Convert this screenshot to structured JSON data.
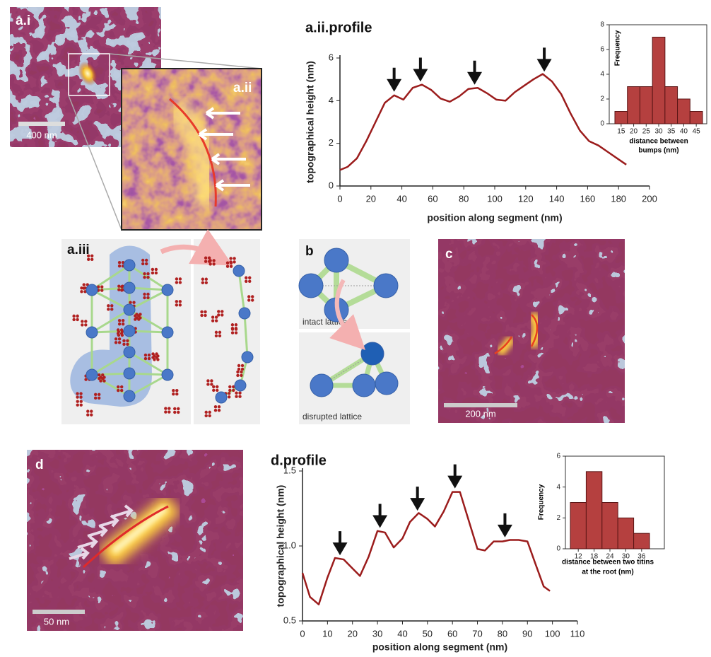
{
  "panels": {
    "a_i": {
      "label": "a.i",
      "scale": "400 nm"
    },
    "a_ii": {
      "label": "a.ii"
    },
    "a_iii": {
      "label": "a.iii"
    },
    "b": {
      "label": "b",
      "top": "intact lattice",
      "bottom": "disrupted lattice"
    },
    "c": {
      "label": "c",
      "scale": "200 nm"
    },
    "d": {
      "label": "d",
      "scale": "50 nm"
    }
  },
  "chart_data": [
    {
      "type": "line",
      "title": "a.ii.profile",
      "xlabel": "position along segment (nm)",
      "ylabel": "topographical height (nm)",
      "x": [
        0,
        5,
        11,
        17,
        23,
        29,
        35,
        41,
        47,
        53,
        59,
        65,
        71,
        77,
        83,
        89,
        95,
        101,
        107,
        113,
        119,
        125,
        131,
        137,
        143,
        149,
        155,
        161,
        167,
        173,
        179,
        185
      ],
      "values": [
        0.75,
        0.9,
        1.3,
        2.1,
        3.0,
        3.9,
        4.25,
        4.05,
        4.6,
        4.75,
        4.5,
        4.1,
        3.95,
        4.2,
        4.55,
        4.6,
        4.35,
        4.05,
        4.0,
        4.4,
        4.7,
        5.0,
        5.25,
        4.9,
        4.3,
        3.4,
        2.6,
        2.1,
        1.9,
        1.6,
        1.3,
        1.0
      ],
      "color": "#9b1c1c",
      "arrows": [
        35,
        52,
        87,
        132
      ],
      "xlim": [
        0,
        200
      ],
      "ylim": [
        0,
        6
      ],
      "xticks": [
        0,
        20,
        40,
        60,
        80,
        100,
        120,
        140,
        160,
        180,
        200
      ],
      "yticks": [
        0,
        2,
        4,
        6
      ]
    },
    {
      "type": "histogram",
      "xlabel": [
        "distance between",
        "bumps (nm)"
      ],
      "ylabel": "Frequency",
      "bins": [
        12.5,
        17.5,
        22.5,
        27.5,
        32.5,
        37.5,
        42.5,
        47.5
      ],
      "values": [
        1,
        3,
        3,
        7,
        3,
        2,
        1
      ],
      "color": "#b5403f",
      "xlim": [
        12.5,
        47.5
      ],
      "ylim": [
        0,
        8
      ],
      "xticks": [
        15,
        20,
        25,
        30,
        35,
        40,
        45
      ],
      "yticks": [
        0,
        2,
        4,
        6,
        8
      ]
    },
    {
      "type": "line",
      "title": "d.profile",
      "xlabel": "position along segment (nm)",
      "ylabel": "topographical height (nm)",
      "x": [
        0,
        3,
        6.5,
        10,
        13,
        16.5,
        20,
        23,
        26.5,
        30,
        33,
        36.5,
        40,
        43,
        46.5,
        50,
        53,
        56.5,
        60,
        63,
        66.5,
        70,
        73,
        76.5,
        80,
        83,
        86.5,
        90,
        93,
        96.5,
        99
      ],
      "values": [
        0.82,
        0.66,
        0.61,
        0.79,
        0.92,
        0.91,
        0.85,
        0.8,
        0.93,
        1.1,
        1.09,
        0.99,
        1.05,
        1.16,
        1.22,
        1.18,
        1.13,
        1.23,
        1.36,
        1.36,
        1.17,
        0.98,
        0.97,
        1.03,
        1.03,
        1.04,
        1.04,
        1.03,
        0.89,
        0.73,
        0.7
      ],
      "color": "#9b1c1c",
      "arrows": [
        15,
        31,
        46,
        61,
        81
      ],
      "xlim": [
        0,
        110
      ],
      "ylim": [
        0.5,
        1.5
      ],
      "xticks": [
        0,
        10,
        20,
        30,
        40,
        50,
        60,
        70,
        80,
        90,
        100,
        110
      ],
      "yticks": [
        0.5,
        {
          "value": 1,
          "label": "1.0"
        },
        1.5
      ]
    },
    {
      "type": "histogram",
      "xlabel": [
        "distance between two titins",
        "at the root (nm)"
      ],
      "ylabel": "Frequency",
      "bins": [
        9,
        15,
        21,
        27,
        33,
        39
      ],
      "values": [
        3,
        5,
        3,
        2,
        1
      ],
      "color": "#b5403f",
      "xlim": [
        9,
        39
      ],
      "ylim": [
        0,
        6
      ],
      "xticks": [
        12,
        18,
        24,
        30,
        36
      ],
      "yticks": [
        0,
        2,
        4,
        6
      ]
    }
  ]
}
